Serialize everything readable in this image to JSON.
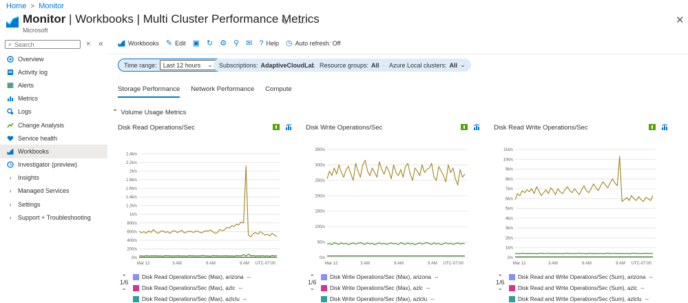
{
  "breadcrumb": {
    "home": "Home",
    "monitor": "Monitor"
  },
  "header": {
    "title_bold": "Monitor",
    "title_rest": " | Workbooks | Multi Cluster Performance Metrics",
    "subtitle": "Microsoft"
  },
  "sidebar": {
    "search_placeholder": "Search",
    "items": [
      {
        "label": "Overview",
        "icon": "overview-icon"
      },
      {
        "label": "Activity log",
        "icon": "activity-log-icon"
      },
      {
        "label": "Alerts",
        "icon": "alerts-icon"
      },
      {
        "label": "Metrics",
        "icon": "metrics-icon"
      },
      {
        "label": "Logs",
        "icon": "logs-icon"
      },
      {
        "label": "Change Analysis",
        "icon": "change-analysis-icon"
      },
      {
        "label": "Service health",
        "icon": "service-health-icon"
      },
      {
        "label": "Workbooks",
        "icon": "workbooks-icon",
        "active": true
      },
      {
        "label": "Investigator (preview)",
        "icon": "investigator-icon"
      },
      {
        "label": "Insights",
        "expandable": true
      },
      {
        "label": "Managed Services",
        "expandable": true
      },
      {
        "label": "Settings",
        "expandable": true
      },
      {
        "label": "Support + Troubleshooting",
        "expandable": true
      }
    ]
  },
  "toolbar": {
    "workbooks": "Workbooks",
    "edit": "Edit",
    "help": "Help",
    "auto_refresh": "Auto refresh: Off"
  },
  "filters": {
    "time_range_label": "Time range:",
    "time_range_value": "Last 12 hours",
    "subscriptions_label": "Subscriptions:",
    "subscriptions_value": "AdaptiveCloudLab",
    "resource_groups_label": "Resource groups:",
    "resource_groups_value": "All",
    "clusters_label": "Azure Local clusters:",
    "clusters_value": "All"
  },
  "tabs": [
    "Storage Performance",
    "Network Performance",
    "Compute"
  ],
  "section_title": "Volume Usage Metrics",
  "colors": {
    "accent": "#0078d4",
    "gold": "#a0841e",
    "green": "#2f8a17",
    "dark_green": "#255a12",
    "purple": "#8c8ef2",
    "pink": "#d6358c",
    "teal": "#2ca09a"
  },
  "chart_data": [
    {
      "type": "line",
      "title": "Disk Read Operations/Sec",
      "y_ticks": [
        "0/s",
        "200/s",
        "400/s",
        "600/s",
        "800/s",
        "1k/s",
        "1.2k/s",
        "1.4k/s",
        "1.6k/s",
        "1.8k/s",
        "2k/s",
        "2.2k/s",
        "2.4k/s"
      ],
      "ylim": [
        0,
        2500
      ],
      "x_ticks": [
        "Mar 12",
        "3 AM",
        "6 AM",
        "9 AM",
        "UTC-07:00"
      ],
      "series": [
        {
          "name": "Disk Read Operations/Sec (Max), arizona",
          "color": "#a0841e",
          "values": [
            610,
            570,
            600,
            560,
            620,
            580,
            650,
            590,
            560,
            600,
            620,
            580,
            600,
            560,
            610,
            620,
            580,
            600,
            630,
            570,
            590,
            610,
            600,
            580,
            620,
            600,
            570,
            590,
            620,
            610,
            640,
            600,
            560,
            580,
            650,
            620,
            640,
            700,
            680,
            740,
            720,
            770,
            760,
            820,
            800,
            2120,
            520,
            480,
            550,
            580,
            540,
            600,
            560,
            520,
            540,
            500,
            560,
            520,
            480
          ]
        },
        {
          "name": "Disk Read Operations/Sec (Max), azlc",
          "color": "#2f8a17",
          "values": [
            35,
            40,
            30,
            45,
            35,
            40,
            38,
            42,
            35,
            40,
            30,
            45,
            38,
            42,
            35,
            40,
            38,
            42,
            35,
            40,
            30,
            45,
            38,
            42,
            35,
            40,
            38,
            50,
            35,
            40,
            30,
            45,
            38,
            42,
            35,
            40,
            38,
            42,
            35,
            40,
            30,
            45,
            38,
            42,
            70,
            35,
            80,
            40,
            45,
            35,
            40,
            38,
            42,
            35,
            40,
            30,
            45,
            38,
            42
          ]
        },
        {
          "name": "Disk Read Operations/Sec (Max), azlclu",
          "color": "#255a12",
          "values": [
            8,
            10,
            8,
            10,
            8,
            10,
            8,
            10,
            8,
            10,
            8,
            10,
            8,
            10,
            8,
            10,
            8,
            10,
            8,
            10,
            8,
            10,
            8,
            10,
            8,
            10,
            8,
            10,
            8,
            10,
            8,
            10,
            8,
            10,
            8,
            10,
            8,
            10,
            8,
            10,
            8,
            10,
            8,
            10,
            8,
            10,
            8,
            10,
            8,
            10,
            8,
            10,
            8,
            10,
            8,
            10,
            8,
            10,
            8
          ]
        }
      ],
      "legend": [
        {
          "label": "Disk Read Operations/Sec (Max), arizona",
          "value": "--",
          "color": "#8c8ef2"
        },
        {
          "label": "Disk Read Operations/Sec (Max), azlc",
          "value": "--",
          "color": "#d6358c"
        },
        {
          "label": "Disk Read Operations/Sec (Max), azlclu",
          "value": "--",
          "color": "#2ca09a"
        }
      ],
      "legend_page": "1/6"
    },
    {
      "type": "line",
      "title": "Disk Write Operations/Sec",
      "y_ticks": [
        "0/s",
        "50/s",
        "100/s",
        "150/s",
        "200/s",
        "250/s",
        "300/s",
        "350/s"
      ],
      "ylim": [
        0,
        350
      ],
      "x_ticks": [
        "Mar 12",
        "3 AM",
        "6 AM",
        "9 AM",
        "UTC-07:00"
      ],
      "series": [
        {
          "name": "Disk Write Operations/Sec (Max), arizona",
          "color": "#a0841e",
          "values": [
            255,
            280,
            265,
            290,
            270,
            300,
            275,
            260,
            285,
            295,
            270,
            250,
            305,
            280,
            260,
            300,
            315,
            280,
            265,
            290,
            275,
            260,
            310,
            285,
            270,
            295,
            280,
            255,
            300,
            275,
            265,
            285,
            260,
            295,
            305,
            270,
            250,
            290,
            280,
            265,
            300,
            275,
            285,
            290,
            305,
            260,
            250,
            295,
            280,
            265,
            245,
            300,
            275,
            290,
            255,
            235,
            285,
            260,
            270
          ]
        },
        {
          "name": "Disk Write Operations/Sec (Max), azlc",
          "color": "#2f8a17",
          "values": [
            44,
            46,
            42,
            48,
            45,
            43,
            47,
            44,
            46,
            42,
            45,
            47,
            44,
            46,
            48,
            45,
            43,
            47,
            44,
            46,
            42,
            45,
            47,
            44,
            46,
            43,
            45,
            47,
            44,
            46,
            42,
            48,
            45,
            43,
            47,
            44,
            46,
            42,
            45,
            47,
            44,
            46,
            48,
            45,
            43,
            47,
            44,
            46,
            42,
            45,
            47,
            44,
            46,
            43,
            45,
            47,
            44,
            46,
            45
          ]
        },
        {
          "name": "Disk Write Operations/Sec (Max), azlclu",
          "color": "#255a12",
          "values": [
            5,
            5,
            5,
            5,
            5,
            5,
            5,
            5,
            5,
            5,
            5,
            5,
            5,
            5,
            5,
            5,
            5,
            5,
            5,
            5,
            5,
            5,
            5,
            5,
            5,
            5,
            5,
            5,
            5,
            5,
            5,
            5,
            5,
            5,
            5,
            5,
            5,
            5,
            5,
            5,
            5,
            5,
            5,
            5,
            5,
            5,
            5,
            5,
            5,
            5,
            5,
            5,
            5,
            5,
            5,
            5,
            5,
            5,
            5
          ]
        }
      ],
      "legend": [
        {
          "label": "Disk Write Operations/Sec (Max), arizona",
          "value": "--",
          "color": "#8c8ef2"
        },
        {
          "label": "Disk Write Operations/Sec (Max), azlc",
          "value": "--",
          "color": "#d6358c"
        },
        {
          "label": "Disk Write Operations/Sec (Max), azlclu",
          "value": "--",
          "color": "#2ca09a"
        }
      ],
      "legend_page": "1/6"
    },
    {
      "type": "line",
      "title": "Disk Read Write Operations/Sec",
      "y_ticks": [
        "0/s",
        "1k/s",
        "2k/s",
        "3k/s",
        "4k/s",
        "5k/s",
        "6k/s",
        "7k/s",
        "8k/s",
        "9k/s",
        "10k/s",
        "11k/s"
      ],
      "ylim": [
        0,
        11000
      ],
      "x_ticks": [
        "Mar 12",
        "3 AM",
        "6 AM",
        "9 AM",
        "UTC-07:00"
      ],
      "series": [
        {
          "name": "Disk Read and Write Operations/Sec (Sum), arizona",
          "color": "#a0841e",
          "values": [
            5900,
            6500,
            6300,
            6800,
            6600,
            6900,
            6700,
            7000,
            6500,
            7200,
            6800,
            6300,
            6600,
            6900,
            6500,
            7100,
            6800,
            6400,
            7000,
            6700,
            6500,
            6900,
            7200,
            6800,
            6600,
            7000,
            6700,
            6400,
            6900,
            7300,
            6800,
            6600,
            7000,
            7500,
            7100,
            6800,
            7300,
            7700,
            7400,
            7100,
            7600,
            8000,
            7600,
            7300,
            10300,
            5700,
            5900,
            6100,
            5800,
            6300,
            6000,
            5800,
            6200,
            5900,
            5700,
            6100,
            6000,
            5800,
            6300
          ]
        },
        {
          "name": "Disk Read and Write Operations/Sec (Sum), azlc",
          "color": "#2f8a17",
          "values": [
            400,
            420,
            380,
            440,
            410,
            390,
            430,
            400,
            420,
            380,
            410,
            440,
            400,
            420,
            430,
            410,
            390,
            430,
            400,
            420,
            380,
            410,
            440,
            400,
            420,
            390,
            410,
            440,
            400,
            420,
            380,
            430,
            410,
            390,
            430,
            400,
            420,
            380,
            410,
            440,
            400,
            420,
            430,
            410,
            390,
            430,
            400,
            420,
            380,
            410,
            440,
            400,
            420,
            390,
            410,
            440,
            400,
            420,
            410
          ]
        },
        {
          "name": "Disk Read and Write Operations/Sec (Sum), azlclu",
          "color": "#255a12",
          "values": [
            60,
            60,
            60,
            60,
            60,
            60,
            60,
            60,
            60,
            60,
            60,
            60,
            60,
            60,
            60,
            60,
            60,
            60,
            60,
            60,
            60,
            60,
            60,
            60,
            60,
            60,
            60,
            60,
            60,
            60,
            60,
            60,
            60,
            60,
            60,
            60,
            60,
            60,
            60,
            60,
            60,
            60,
            60,
            60,
            60,
            60,
            60,
            60,
            60,
            60,
            60,
            60,
            60,
            60,
            60,
            60,
            60,
            60,
            60
          ]
        }
      ],
      "legend": [
        {
          "label": "Disk Read and Write Operations/Sec (Sum), arizona",
          "value": "--",
          "color": "#8c8ef2"
        },
        {
          "label": "Disk Read and Write Operations/Sec (Sum), azlc",
          "value": "--",
          "color": "#d6358c"
        },
        {
          "label": "Disk Read and Write Operations/Sec (Sum), azlclu",
          "value": "--",
          "color": "#2ca09a"
        }
      ],
      "legend_page": "1/6"
    }
  ]
}
